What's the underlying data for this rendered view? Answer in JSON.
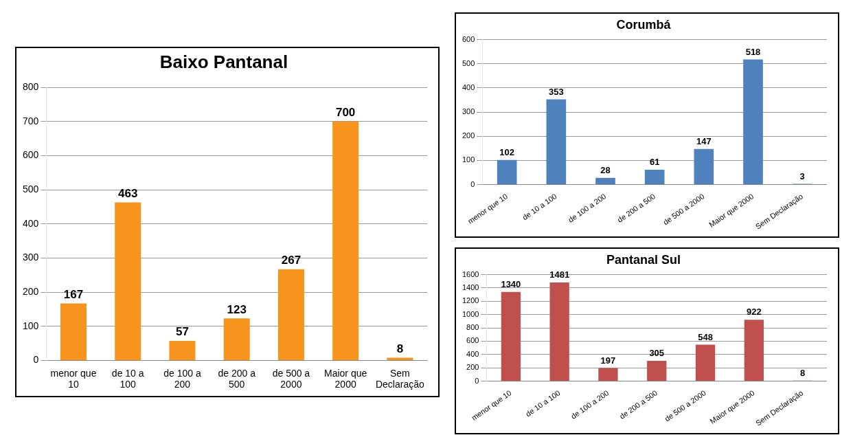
{
  "chart_data": [
    {
      "type": "bar",
      "title": "Baixo Pantanal",
      "categories": [
        "menor que 10",
        "de 10 a 100",
        "de 100 a 200",
        "de 200 a 500",
        "de 500 a 2000",
        "Maior que 2000",
        "Sem Declaração"
      ],
      "values": [
        167,
        463,
        57,
        123,
        267,
        700,
        8
      ],
      "color": "#f7941d",
      "ylim": [
        0,
        800
      ],
      "yticks": [
        0,
        100,
        200,
        300,
        400,
        500,
        600,
        700,
        800
      ],
      "grid": "y",
      "data_labels": true
    },
    {
      "type": "bar",
      "title": "Corumbá",
      "categories": [
        "menor que 10",
        "de 10 a 100",
        "de 100 a 200",
        "de 200 a 500",
        "de 500 a 2000",
        "Maior que 2000",
        "Sem Declaração"
      ],
      "values": [
        102,
        353,
        28,
        61,
        147,
        518,
        3
      ],
      "color": "#4f81bd",
      "ylim": [
        0,
        600
      ],
      "yticks": [
        0,
        100,
        200,
        300,
        400,
        500,
        600
      ],
      "grid": "y",
      "data_labels": true
    },
    {
      "type": "bar",
      "title": "Pantanal Sul",
      "categories": [
        "menor que 10",
        "de 10 a 100",
        "de 100 a 200",
        "de 200 a 500",
        "de 500 a 2000",
        "Maior que 2000",
        "Sem Declaração"
      ],
      "values": [
        1340,
        1481,
        197,
        305,
        548,
        922,
        8
      ],
      "color": "#c0504d",
      "ylim": [
        0,
        1600
      ],
      "yticks": [
        0,
        200,
        400,
        600,
        800,
        1000,
        1200,
        1400,
        1600
      ],
      "grid": "y",
      "data_labels": true
    }
  ]
}
